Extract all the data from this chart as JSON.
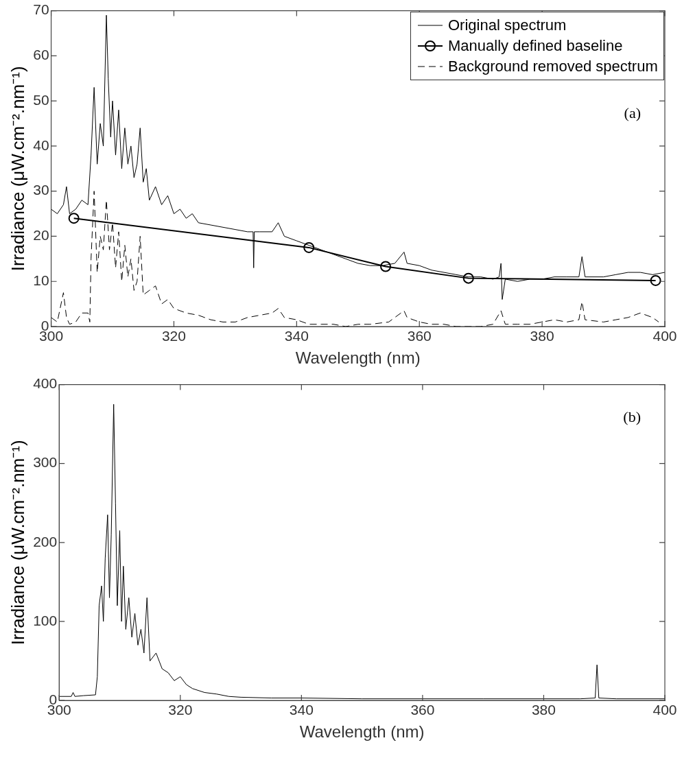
{
  "chart_data": [
    {
      "type": "line",
      "xlabel": "Wavelength (nm)",
      "ylabel": "Irradiance (μW.cm⁻².nm⁻¹)",
      "xlim": [
        300,
        400
      ],
      "xticks": [
        300,
        320,
        340,
        360,
        380,
        400
      ],
      "ylim": [
        0,
        70
      ],
      "yticks": [
        0,
        10,
        20,
        30,
        40,
        50,
        60,
        70
      ],
      "grid": false,
      "legend": "top right",
      "annotations": [
        "(a)"
      ],
      "series": [
        {
          "name": "Original spectrum",
          "color": "#000000",
          "marker": "none",
          "line_style": "solid",
          "x": [
            300,
            301,
            302,
            302.5,
            303,
            304,
            305,
            306,
            306.5,
            307,
            307.5,
            308,
            308.5,
            309,
            309.3,
            309.7,
            310,
            310.5,
            311,
            311.5,
            312,
            312.5,
            313,
            313.5,
            314,
            314.5,
            315,
            315.5,
            316,
            317,
            318,
            319,
            320,
            321,
            322,
            323,
            324,
            326,
            328,
            330,
            332,
            332.9,
            333,
            333.1,
            334,
            336,
            337,
            338,
            340,
            342,
            344,
            346,
            348,
            350,
            352,
            354,
            356,
            357.5,
            358,
            360,
            362,
            364,
            366,
            368,
            370,
            372,
            373,
            373.3,
            373.5,
            374,
            376,
            378,
            380,
            382,
            384,
            386,
            386.5,
            387,
            390,
            392,
            394,
            396,
            398,
            400
          ],
          "values": [
            26,
            25,
            27,
            31,
            25,
            26,
            28,
            27,
            38,
            53,
            36,
            45,
            40,
            69,
            55,
            42,
            50,
            38,
            48,
            35,
            44,
            36,
            40,
            33,
            36,
            44,
            32,
            35,
            28,
            31,
            27,
            29,
            25,
            26,
            24,
            25,
            23,
            22.5,
            22,
            21.5,
            21,
            21,
            13,
            21,
            21,
            21,
            23,
            20,
            19,
            18,
            17,
            16,
            15,
            14,
            13.5,
            13.5,
            14,
            16.5,
            14,
            13.5,
            12.5,
            12,
            11.5,
            11,
            11,
            10.5,
            11,
            14,
            6,
            10.5,
            10,
            10.5,
            10.5,
            11,
            11,
            11,
            15.5,
            11,
            11,
            11.5,
            12,
            12,
            11.5,
            12
          ]
        },
        {
          "name": "Manually defined baseline",
          "color": "#000000",
          "marker": "circle",
          "line_style": "solid",
          "x": [
            303.7,
            342,
            354.5,
            368,
            398.5
          ],
          "values": [
            24,
            17.5,
            13.3,
            10.7,
            10.2
          ]
        },
        {
          "name": "Background removed spectrum",
          "color": "#000000",
          "marker": "none",
          "line_style": "dashed",
          "x": [
            300,
            301,
            302,
            302.5,
            303,
            304,
            305,
            306,
            306.3,
            306.5,
            307,
            307.5,
            308,
            308.5,
            309,
            309.5,
            310,
            310.5,
            311,
            311.5,
            312,
            312.5,
            313,
            313.5,
            314,
            314.5,
            315,
            316,
            317,
            318,
            319,
            320,
            322,
            324,
            326,
            328,
            330,
            332,
            334,
            336,
            337,
            338,
            340,
            342,
            344,
            346,
            348,
            350,
            352,
            355,
            357.5,
            358,
            360,
            362,
            364,
            366,
            368,
            370,
            372,
            373.3,
            374,
            376,
            378,
            380,
            382,
            384,
            386,
            386.5,
            387,
            390,
            392,
            394,
            396,
            398,
            399
          ],
          "values": [
            2,
            1,
            7.5,
            2,
            0.5,
            1,
            3,
            3,
            1,
            15,
            30,
            12,
            20,
            17,
            28,
            17,
            23,
            13,
            21,
            10,
            18,
            11,
            15,
            8,
            10,
            20,
            7,
            8,
            9,
            5,
            6,
            4,
            3,
            2.5,
            1.5,
            1,
            1,
            2,
            2.5,
            3,
            4,
            2,
            1.5,
            0.5,
            0.5,
            0.5,
            0,
            0.5,
            0.5,
            1,
            3.5,
            2,
            1,
            0.5,
            0.5,
            0,
            0,
            0,
            0.5,
            3.5,
            0.5,
            0.5,
            0.5,
            1,
            1.5,
            1,
            1.5,
            5.5,
            1.5,
            1,
            1.5,
            2,
            3,
            2,
            1
          ]
        }
      ]
    },
    {
      "type": "line",
      "xlabel": "Wavelength (nm)",
      "ylabel": "Irradiance (μW.cm⁻².nm⁻¹)",
      "xlim": [
        300,
        400
      ],
      "xticks": [
        300,
        320,
        340,
        360,
        380,
        400
      ],
      "ylim": [
        0,
        400
      ],
      "yticks": [
        0,
        100,
        200,
        300,
        400
      ],
      "grid": false,
      "annotations": [
        "(b)"
      ],
      "series": [
        {
          "color": "#000000",
          "marker": "none",
          "line_style": "solid",
          "x": [
            300,
            302,
            302.3,
            302.6,
            304,
            306,
            306.3,
            306.6,
            307,
            307.3,
            307.6,
            308,
            308.3,
            308.6,
            309,
            309.3,
            309.6,
            310,
            310.3,
            310.6,
            311,
            311.5,
            312,
            312.5,
            313,
            313.5,
            314,
            314.5,
            315,
            316,
            317,
            318,
            319,
            320,
            321,
            322,
            324,
            326,
            328,
            330,
            335,
            340,
            350,
            360,
            370,
            380,
            386,
            388.5,
            388.8,
            389.1,
            392,
            400
          ],
          "values": [
            5,
            5,
            10,
            5,
            6,
            7,
            30,
            120,
            145,
            100,
            180,
            235,
            130,
            210,
            375,
            250,
            120,
            215,
            100,
            170,
            90,
            130,
            80,
            110,
            70,
            90,
            60,
            130,
            50,
            60,
            40,
            35,
            25,
            30,
            20,
            15,
            10,
            8,
            5,
            4,
            3,
            3,
            2,
            2,
            2,
            2,
            2,
            3,
            45,
            3,
            2,
            2
          ]
        }
      ]
    }
  ]
}
